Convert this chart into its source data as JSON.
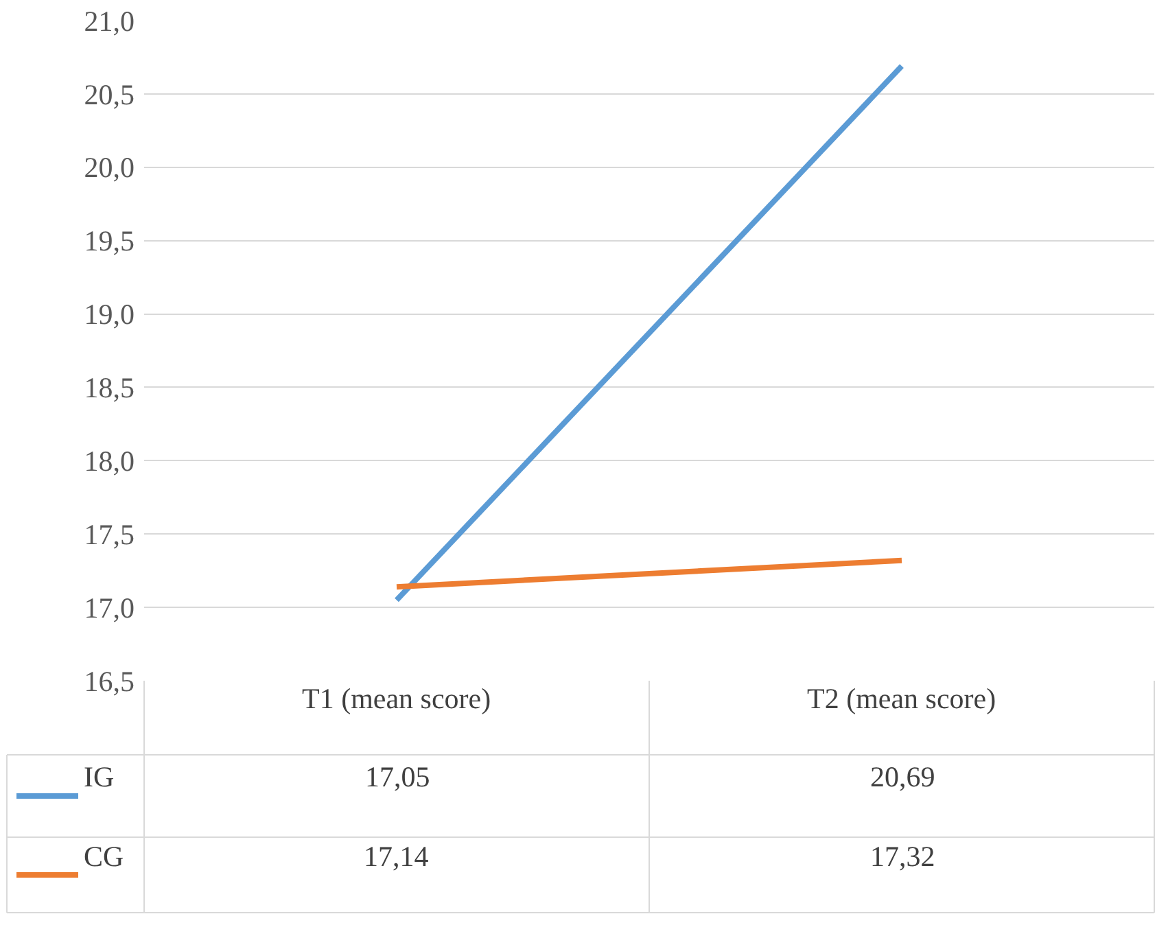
{
  "chart_data": {
    "type": "line",
    "categories": [
      "T1 (mean score)",
      "T2 (mean score)"
    ],
    "series": [
      {
        "name": "IG",
        "color": "#5b9bd5",
        "values": [
          17.05,
          20.69
        ],
        "value_labels": [
          "17,05",
          "20,69"
        ]
      },
      {
        "name": "CG",
        "color": "#ed7d31",
        "values": [
          17.14,
          17.32
        ],
        "value_labels": [
          "17,14",
          "17,32"
        ]
      }
    ],
    "ylim": [
      16.5,
      21.0
    ],
    "yticks": [
      {
        "value": 16.5,
        "label": "16,5"
      },
      {
        "value": 17.0,
        "label": "17,0"
      },
      {
        "value": 17.5,
        "label": "17,5"
      },
      {
        "value": 18.0,
        "label": "18,0"
      },
      {
        "value": 18.5,
        "label": "18,5"
      },
      {
        "value": 19.0,
        "label": "19,0"
      },
      {
        "value": 19.5,
        "label": "19,5"
      },
      {
        "value": 20.0,
        "label": "20,0"
      },
      {
        "value": 20.5,
        "label": "20,5"
      },
      {
        "value": 21.0,
        "label": "21,0"
      }
    ],
    "grid": "y",
    "legend": "bottom",
    "marker": "none",
    "line_style": "solid"
  }
}
